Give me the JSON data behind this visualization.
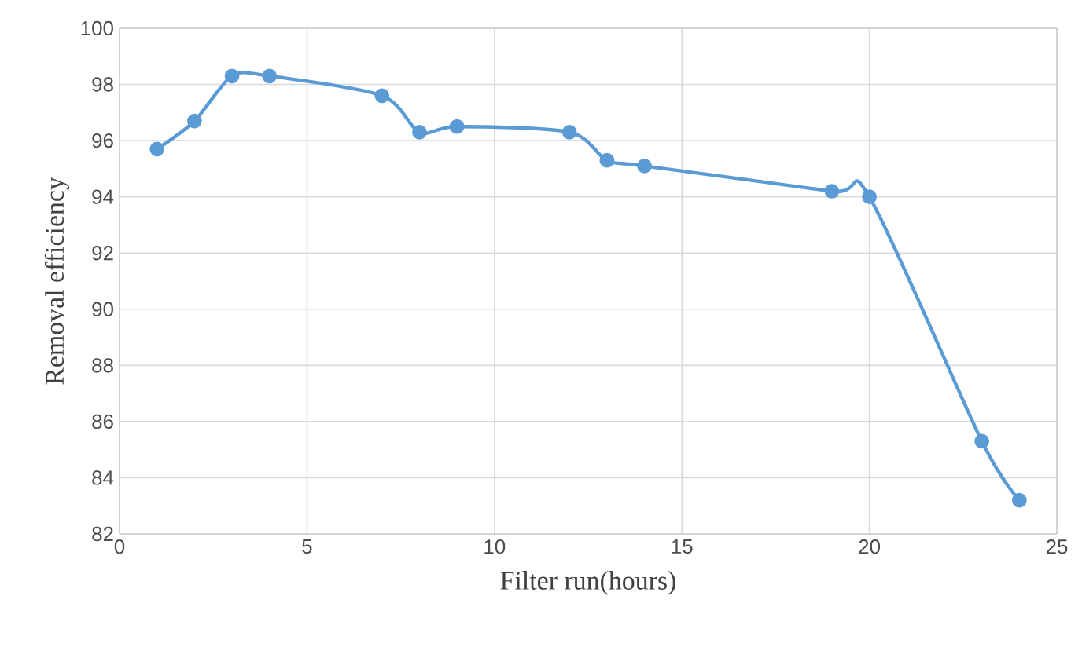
{
  "chart_data": {
    "type": "line",
    "xlabel": "Filter run(hours)",
    "ylabel": "Removal efficiency",
    "x": [
      1,
      2,
      3,
      4,
      7,
      8,
      9,
      12,
      13,
      14,
      19,
      20,
      23,
      24
    ],
    "series": [
      {
        "color": "#5b9bd5",
        "values": [
          95.7,
          96.7,
          98.3,
          98.3,
          97.6,
          96.3,
          96.5,
          96.3,
          95.3,
          95.1,
          94.2,
          94.0,
          85.3,
          83.2
        ]
      }
    ],
    "xlim": [
      0,
      25
    ],
    "xticks": [
      0,
      5,
      10,
      15,
      20,
      25
    ],
    "ylim": [
      82,
      100
    ],
    "yticks": [
      82,
      84,
      86,
      88,
      90,
      92,
      94,
      96,
      98,
      100
    ],
    "grid": true,
    "marker": "circle",
    "line_style": "solid"
  }
}
